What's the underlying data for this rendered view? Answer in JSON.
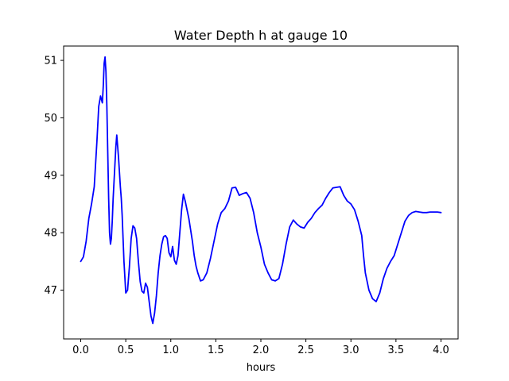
{
  "chart_data": {
    "type": "line",
    "title": "Water Depth h at gauge 10",
    "xlabel": "hours",
    "ylabel": "",
    "xlim": [
      -0.19,
      4.19
    ],
    "ylim": [
      46.15,
      51.25
    ],
    "xticks": [
      0.0,
      0.5,
      1.0,
      1.5,
      2.0,
      2.5,
      3.0,
      3.5,
      4.0
    ],
    "xtick_labels": [
      "0.0",
      "0.5",
      "1.0",
      "1.5",
      "2.0",
      "2.5",
      "3.0",
      "3.5",
      "4.0"
    ],
    "yticks": [
      47,
      48,
      49,
      50,
      51
    ],
    "ytick_labels": [
      "47",
      "48",
      "49",
      "50",
      "51"
    ],
    "grid": false,
    "legend": false,
    "line_color": "#0000ff",
    "series": [
      {
        "x": [
          0.0,
          0.03,
          0.06,
          0.09,
          0.12,
          0.15,
          0.18,
          0.2,
          0.22,
          0.23,
          0.24,
          0.25,
          0.26,
          0.27,
          0.28,
          0.29,
          0.3,
          0.31,
          0.32,
          0.33,
          0.34,
          0.35,
          0.36,
          0.37,
          0.38,
          0.39,
          0.4,
          0.42,
          0.44,
          0.45,
          0.46,
          0.47,
          0.48,
          0.5,
          0.52,
          0.54,
          0.56,
          0.58,
          0.6,
          0.62,
          0.64,
          0.66,
          0.68,
          0.7,
          0.72,
          0.74,
          0.76,
          0.78,
          0.8,
          0.82,
          0.84,
          0.86,
          0.88,
          0.9,
          0.92,
          0.94,
          0.96,
          0.98,
          1.0,
          1.02,
          1.04,
          1.06,
          1.08,
          1.1,
          1.12,
          1.14,
          1.16,
          1.18,
          1.2,
          1.22,
          1.24,
          1.26,
          1.28,
          1.3,
          1.33,
          1.36,
          1.4,
          1.44,
          1.48,
          1.52,
          1.56,
          1.6,
          1.64,
          1.68,
          1.72,
          1.76,
          1.8,
          1.84,
          1.88,
          1.92,
          1.96,
          2.0,
          2.04,
          2.08,
          2.12,
          2.16,
          2.2,
          2.24,
          2.28,
          2.32,
          2.36,
          2.4,
          2.44,
          2.48,
          2.52,
          2.56,
          2.6,
          2.64,
          2.68,
          2.72,
          2.76,
          2.8,
          2.84,
          2.88,
          2.92,
          2.96,
          3.0,
          3.04,
          3.08,
          3.12,
          3.14,
          3.16,
          3.2,
          3.24,
          3.28,
          3.32,
          3.36,
          3.4,
          3.44,
          3.48,
          3.52,
          3.56,
          3.6,
          3.64,
          3.68,
          3.72,
          3.76,
          3.8,
          3.84,
          3.88,
          3.92,
          3.96,
          4.0
        ],
        "y": [
          47.5,
          47.58,
          47.85,
          48.25,
          48.5,
          48.8,
          49.6,
          50.2,
          50.38,
          50.32,
          50.26,
          50.55,
          50.95,
          51.06,
          50.8,
          50.2,
          49.4,
          48.6,
          48.0,
          47.8,
          47.9,
          48.2,
          48.6,
          48.9,
          49.2,
          49.5,
          49.7,
          49.3,
          48.8,
          48.6,
          48.3,
          47.9,
          47.5,
          46.95,
          47.0,
          47.4,
          47.9,
          48.12,
          48.08,
          47.9,
          47.5,
          47.15,
          46.98,
          46.95,
          47.12,
          47.05,
          46.8,
          46.55,
          46.42,
          46.6,
          46.9,
          47.3,
          47.6,
          47.8,
          47.93,
          47.95,
          47.9,
          47.65,
          47.58,
          47.76,
          47.52,
          47.45,
          47.6,
          48.0,
          48.4,
          48.67,
          48.55,
          48.4,
          48.25,
          48.05,
          47.85,
          47.6,
          47.42,
          47.3,
          47.16,
          47.18,
          47.3,
          47.55,
          47.85,
          48.15,
          48.35,
          48.42,
          48.55,
          48.78,
          48.79,
          48.65,
          48.68,
          48.7,
          48.6,
          48.35,
          48.0,
          47.75,
          47.45,
          47.3,
          47.18,
          47.16,
          47.2,
          47.45,
          47.8,
          48.1,
          48.22,
          48.15,
          48.1,
          48.08,
          48.18,
          48.25,
          48.35,
          48.42,
          48.48,
          48.6,
          48.7,
          48.78,
          48.79,
          48.8,
          48.65,
          48.55,
          48.5,
          48.4,
          48.2,
          47.95,
          47.6,
          47.3,
          47.0,
          46.85,
          46.8,
          46.95,
          47.2,
          47.38,
          47.5,
          47.6,
          47.8,
          48.0,
          48.2,
          48.3,
          48.35,
          48.37,
          48.36,
          48.35,
          48.35,
          48.36,
          48.36,
          48.36,
          48.35
        ]
      }
    ]
  }
}
